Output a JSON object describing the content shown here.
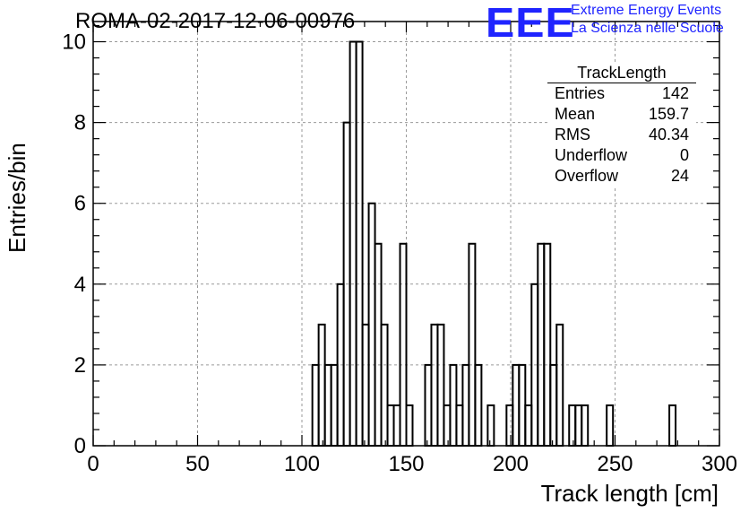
{
  "header": {
    "title": "ROMA-02-2017-12-06-00976",
    "logo_text": "EEE",
    "logo_line1": "Extreme Energy Events",
    "logo_line2": "La Scienza nelle Scuole"
  },
  "stats_box": {
    "title": "TrackLength",
    "rows": [
      {
        "label": "Entries",
        "value": "142"
      },
      {
        "label": "Mean",
        "value": "159.7"
      },
      {
        "label": "RMS",
        "value": "40.34"
      },
      {
        "label": "Underflow",
        "value": "0"
      },
      {
        "label": "Overflow",
        "value": "24"
      }
    ]
  },
  "colors": {
    "logo": "#1f24ff",
    "line": "#000000",
    "grid": "#9a9a9a"
  },
  "chart_data": {
    "type": "bar",
    "title": "ROMA-02-2017-12-06-00976",
    "xlabel": "Track length [cm]",
    "ylabel": "Entries/bin",
    "xlim": [
      0,
      300
    ],
    "ylim": [
      0,
      10.5
    ],
    "grid": true,
    "xticks": [
      0,
      50,
      100,
      150,
      200,
      250,
      300
    ],
    "yticks": [
      0,
      2,
      4,
      6,
      8,
      10
    ],
    "bin_width": 3,
    "bins": [
      {
        "x0": 105,
        "y": 2
      },
      {
        "x0": 108,
        "y": 3
      },
      {
        "x0": 111,
        "y": 2
      },
      {
        "x0": 114,
        "y": 2
      },
      {
        "x0": 117,
        "y": 4
      },
      {
        "x0": 120,
        "y": 8
      },
      {
        "x0": 123,
        "y": 10
      },
      {
        "x0": 126,
        "y": 10
      },
      {
        "x0": 129,
        "y": 3
      },
      {
        "x0": 132,
        "y": 6
      },
      {
        "x0": 135,
        "y": 5
      },
      {
        "x0": 138,
        "y": 3
      },
      {
        "x0": 141,
        "y": 1
      },
      {
        "x0": 144,
        "y": 1
      },
      {
        "x0": 147,
        "y": 5
      },
      {
        "x0": 150,
        "y": 1
      },
      {
        "x0": 159,
        "y": 2
      },
      {
        "x0": 162,
        "y": 3
      },
      {
        "x0": 165,
        "y": 3
      },
      {
        "x0": 168,
        "y": 1
      },
      {
        "x0": 171,
        "y": 2
      },
      {
        "x0": 174,
        "y": 1
      },
      {
        "x0": 177,
        "y": 2
      },
      {
        "x0": 180,
        "y": 5
      },
      {
        "x0": 183,
        "y": 2
      },
      {
        "x0": 189,
        "y": 1
      },
      {
        "x0": 198,
        "y": 1
      },
      {
        "x0": 201,
        "y": 2
      },
      {
        "x0": 204,
        "y": 2
      },
      {
        "x0": 207,
        "y": 1
      },
      {
        "x0": 210,
        "y": 4
      },
      {
        "x0": 213,
        "y": 5
      },
      {
        "x0": 216,
        "y": 5
      },
      {
        "x0": 219,
        "y": 2
      },
      {
        "x0": 222,
        "y": 3
      },
      {
        "x0": 228,
        "y": 1
      },
      {
        "x0": 231,
        "y": 1
      },
      {
        "x0": 234,
        "y": 1
      },
      {
        "x0": 246,
        "y": 1
      },
      {
        "x0": 276,
        "y": 1
      }
    ]
  }
}
